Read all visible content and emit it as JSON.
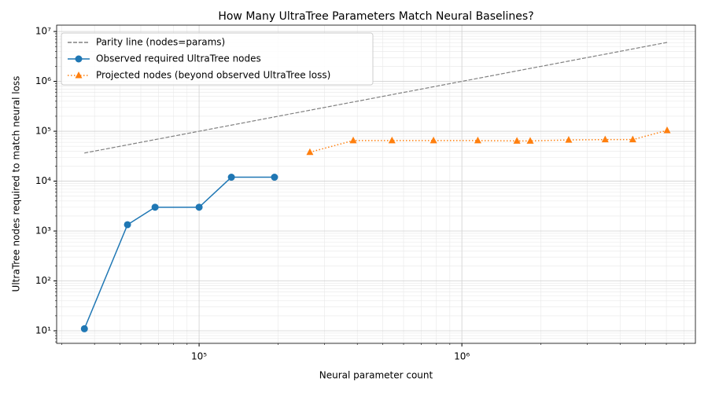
{
  "chart_data": {
    "type": "line",
    "title": "How Many UltraTree Parameters Match Neural Baselines?",
    "xlabel": "Neural parameter count",
    "ylabel": "UltraTree nodes required to match neural loss",
    "xscale": "log",
    "yscale": "log",
    "grid": true,
    "legend": "upper left",
    "xlim": [
      28700,
      7740000
    ],
    "ylim": [
      5.6,
      13400000
    ],
    "xticks": [
      {
        "value": 100000,
        "label": "10⁵"
      },
      {
        "value": 1000000,
        "label": "10⁶"
      }
    ],
    "yticks": [
      {
        "value": 10,
        "label": "10¹"
      },
      {
        "value": 100,
        "label": "10²"
      },
      {
        "value": 1000,
        "label": "10³"
      },
      {
        "value": 10000,
        "label": "10⁴"
      },
      {
        "value": 100000,
        "label": "10⁵"
      },
      {
        "value": 1000000,
        "label": "10⁶"
      },
      {
        "value": 10000000,
        "label": "10⁷"
      }
    ],
    "series": [
      {
        "name": "Parity line (nodes=params)",
        "color": "#808080",
        "linestyle": "dashed",
        "marker": "none",
        "x": [
          36600,
          6040000
        ],
        "values": [
          36600,
          6040000
        ]
      },
      {
        "name": "Observed required UltraTree nodes",
        "color": "#1f77b4",
        "linestyle": "solid",
        "marker": "circle",
        "x": [
          36600,
          53400,
          68000,
          100000,
          132700,
          193600
        ],
        "values": [
          11,
          1340,
          3000,
          3000,
          12000,
          12000
        ]
      },
      {
        "name": "Projected nodes (beyond observed UltraTree loss)",
        "color": "#ff7f0e",
        "linestyle": "dotted",
        "marker": "triangle",
        "x": [
          264000,
          386000,
          542000,
          780000,
          1150000,
          1620000,
          1820000,
          2550000,
          3510000,
          4470000,
          6040000
        ],
        "values": [
          38000,
          65000,
          65000,
          65000,
          65000,
          64000,
          64000,
          67000,
          68000,
          68000,
          104000
        ]
      }
    ]
  }
}
